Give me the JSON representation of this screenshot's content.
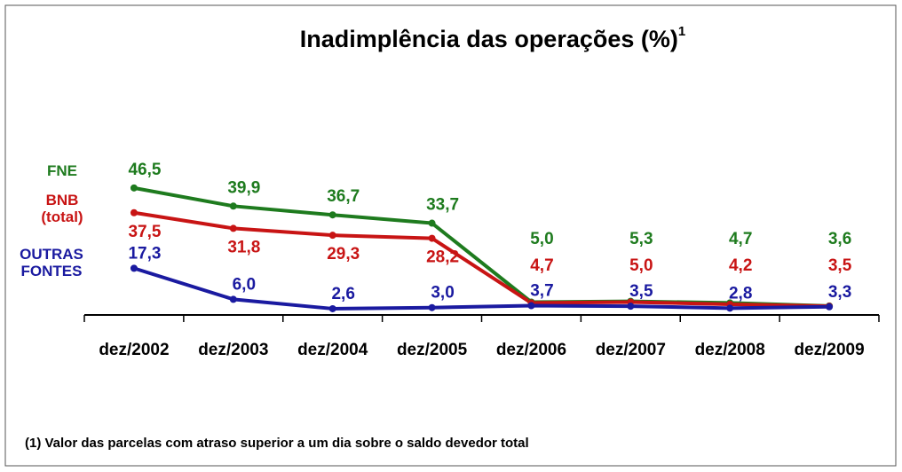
{
  "chart_data": {
    "type": "line",
    "title": "Inadimplência das operações (%)",
    "title_superscript": "1",
    "footnote": "(1) Valor das parcelas com atraso superior a um dia sobre o saldo devedor total",
    "categories": [
      "dez/2002",
      "dez/2003",
      "dez/2004",
      "dez/2005",
      "dez/2006",
      "dez/2007",
      "dez/2008",
      "dez/2009"
    ],
    "series": [
      {
        "name": "FNE",
        "color": "#1e7b1e",
        "values": [
          46.5,
          39.9,
          36.7,
          33.7,
          5.0,
          5.3,
          4.7,
          3.6
        ],
        "value_labels": [
          "46,5",
          "39,9",
          "36,7",
          "33,7",
          "5,0",
          "5,3",
          "4,7",
          "3,6"
        ]
      },
      {
        "name": "BNB (total)",
        "color": "#c81414",
        "values": [
          37.5,
          31.8,
          29.3,
          28.2,
          4.7,
          5.0,
          4.2,
          3.5
        ],
        "value_labels": [
          "37,5",
          "31,8",
          "29,3",
          "28,2",
          "4,7",
          "5,0",
          "4,2",
          "3,5"
        ]
      },
      {
        "name": "OUTRAS FONTES",
        "color": "#1a1aa0",
        "values": [
          17.3,
          6.0,
          2.6,
          3.0,
          3.7,
          3.5,
          2.8,
          3.3
        ],
        "value_labels": [
          "17,3",
          "6,0",
          "2,6",
          "3,0",
          "3,7",
          "3,5",
          "2,8",
          "3,3"
        ]
      }
    ]
  }
}
